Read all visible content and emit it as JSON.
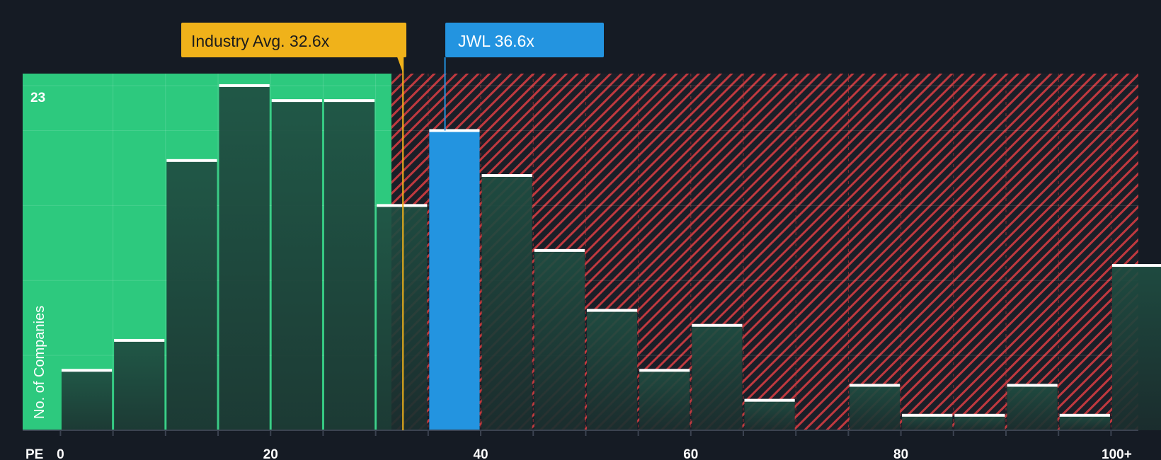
{
  "chart_data": {
    "type": "bar",
    "title": "",
    "xlabel": "PE",
    "ylabel": "No. of Companies",
    "x_range": [
      -3.6,
      102.6
    ],
    "ylim": [
      0,
      23.8
    ],
    "y_max_label": "23",
    "x_ticks": [
      {
        "value": 0,
        "label": "0"
      },
      {
        "value": 20,
        "label": "20"
      },
      {
        "value": 40,
        "label": "40"
      },
      {
        "value": 60,
        "label": "60"
      },
      {
        "value": 80,
        "label": "80"
      },
      {
        "value": 100,
        "label": "100+"
      }
    ],
    "bins": [
      {
        "start": 0,
        "end": 5,
        "count": 4
      },
      {
        "start": 5,
        "end": 10,
        "count": 6
      },
      {
        "start": 10,
        "end": 15,
        "count": 18
      },
      {
        "start": 15,
        "end": 20,
        "count": 23
      },
      {
        "start": 20,
        "end": 25,
        "count": 22
      },
      {
        "start": 25,
        "end": 30,
        "count": 22
      },
      {
        "start": 30,
        "end": 35,
        "count": 15
      },
      {
        "start": 35,
        "end": 40,
        "count": 20,
        "highlight": true
      },
      {
        "start": 40,
        "end": 45,
        "count": 17
      },
      {
        "start": 45,
        "end": 50,
        "count": 12
      },
      {
        "start": 50,
        "end": 55,
        "count": 8
      },
      {
        "start": 55,
        "end": 60,
        "count": 4
      },
      {
        "start": 60,
        "end": 65,
        "count": 7
      },
      {
        "start": 65,
        "end": 70,
        "count": 2
      },
      {
        "start": 70,
        "end": 75,
        "count": 0
      },
      {
        "start": 75,
        "end": 80,
        "count": 3
      },
      {
        "start": 80,
        "end": 85,
        "count": 1
      },
      {
        "start": 85,
        "end": 90,
        "count": 1
      },
      {
        "start": 90,
        "end": 95,
        "count": 3
      },
      {
        "start": 95,
        "end": 100,
        "count": 1
      },
      {
        "start": 100,
        "end": 105,
        "count": 11
      }
    ],
    "fair_region_end": 31.5,
    "industry_avg": {
      "value": 32.6,
      "label": "Industry Avg. 32.6x"
    },
    "company": {
      "ticker": "JWL",
      "value": 36.6,
      "label": "JWL 36.6x"
    }
  },
  "colors": {
    "background": "#151b24",
    "fair_zone": "#2dc97e",
    "expensive_stripe": "#c0393f",
    "bar_dark": "#1d4a3f",
    "company_bar": "#2394e0",
    "industry_label": "#f0b21a",
    "bar_cap": "#ffffff"
  }
}
